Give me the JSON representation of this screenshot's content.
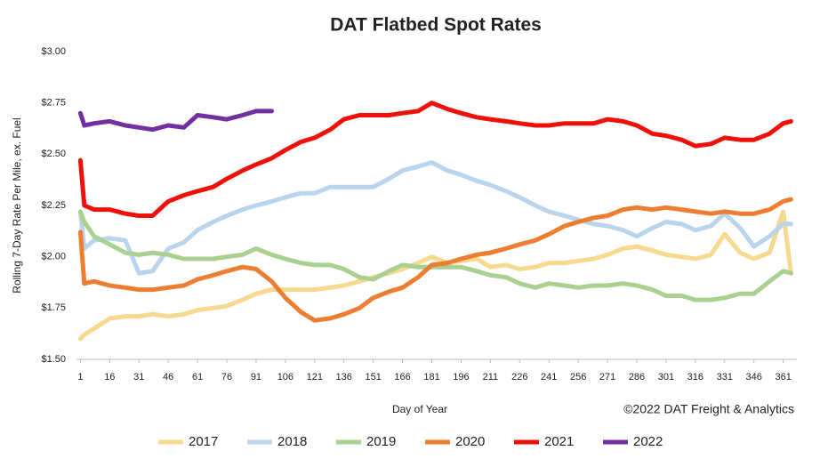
{
  "chart_data": {
    "type": "line",
    "title": "DAT Flatbed Spot Rates",
    "x_label": "Day of Year",
    "y_label": "Rolling 7-Day Rate Per Mile, ex. Fuel",
    "note": "©2022 DAT Freight & Analytics",
    "legend": "bottom",
    "xlim": [
      -1,
      368
    ],
    "ylim": [
      1.5,
      3.0
    ],
    "xticks": [
      1,
      16,
      31,
      46,
      61,
      76,
      91,
      106,
      121,
      136,
      151,
      166,
      181,
      196,
      211,
      226,
      241,
      256,
      271,
      286,
      301,
      316,
      331,
      346,
      361
    ],
    "yticks": [
      {
        "value": 1.5,
        "label": "$1.50"
      },
      {
        "value": 1.75,
        "label": "$1.75"
      },
      {
        "value": 2.0,
        "label": "$2.00"
      },
      {
        "value": 2.25,
        "label": "$2.25"
      },
      {
        "value": 2.5,
        "label": "$2.50"
      },
      {
        "value": 2.75,
        "label": "$2.75"
      },
      {
        "value": 3.0,
        "label": "$3.00"
      }
    ],
    "x": [
      1,
      3,
      8,
      16,
      24,
      31,
      38,
      46,
      54,
      61,
      69,
      76,
      84,
      91,
      99,
      106,
      114,
      121,
      129,
      136,
      144,
      151,
      159,
      166,
      174,
      181,
      189,
      196,
      204,
      211,
      219,
      226,
      234,
      241,
      249,
      256,
      264,
      271,
      279,
      286,
      294,
      301,
      309,
      316,
      324,
      331,
      339,
      346,
      354,
      361,
      365
    ],
    "series": [
      {
        "name": "2017",
        "color": "#f6d98e",
        "values": [
          1.6,
          1.62,
          1.65,
          1.7,
          1.71,
          1.71,
          1.72,
          1.71,
          1.72,
          1.74,
          1.75,
          1.76,
          1.79,
          1.82,
          1.84,
          1.84,
          1.84,
          1.84,
          1.85,
          1.86,
          1.88,
          1.9,
          1.92,
          1.94,
          1.97,
          2.0,
          1.97,
          1.98,
          1.99,
          1.95,
          1.96,
          1.94,
          1.95,
          1.97,
          1.97,
          1.98,
          1.99,
          2.01,
          2.04,
          2.05,
          2.03,
          2.01,
          2.0,
          1.99,
          2.01,
          2.11,
          2.02,
          1.99,
          2.02,
          2.22,
          1.92
        ]
      },
      {
        "name": "2018",
        "color": "#b9d4ec",
        "values": [
          2.22,
          2.04,
          2.08,
          2.09,
          2.08,
          1.92,
          1.93,
          2.04,
          2.07,
          2.13,
          2.17,
          2.2,
          2.23,
          2.25,
          2.27,
          2.29,
          2.31,
          2.31,
          2.34,
          2.34,
          2.34,
          2.34,
          2.38,
          2.42,
          2.44,
          2.46,
          2.42,
          2.4,
          2.37,
          2.35,
          2.32,
          2.29,
          2.25,
          2.22,
          2.2,
          2.18,
          2.16,
          2.15,
          2.13,
          2.1,
          2.14,
          2.17,
          2.16,
          2.13,
          2.15,
          2.21,
          2.14,
          2.05,
          2.1,
          2.16,
          2.16
        ]
      },
      {
        "name": "2019",
        "color": "#a9d08f",
        "values": [
          2.22,
          2.17,
          2.1,
          2.06,
          2.02,
          2.01,
          2.02,
          2.01,
          1.99,
          1.99,
          1.99,
          2.0,
          2.01,
          2.04,
          2.01,
          1.99,
          1.97,
          1.96,
          1.96,
          1.94,
          1.9,
          1.89,
          1.93,
          1.96,
          1.95,
          1.95,
          1.95,
          1.95,
          1.93,
          1.91,
          1.9,
          1.87,
          1.85,
          1.87,
          1.86,
          1.85,
          1.86,
          1.86,
          1.87,
          1.86,
          1.84,
          1.81,
          1.81,
          1.79,
          1.79,
          1.8,
          1.82,
          1.82,
          1.88,
          1.93,
          1.92
        ]
      },
      {
        "name": "2020",
        "color": "#ed7d31",
        "values": [
          2.12,
          1.87,
          1.88,
          1.86,
          1.85,
          1.84,
          1.84,
          1.85,
          1.86,
          1.89,
          1.91,
          1.93,
          1.95,
          1.94,
          1.88,
          1.8,
          1.73,
          1.69,
          1.7,
          1.72,
          1.75,
          1.8,
          1.83,
          1.85,
          1.9,
          1.96,
          1.97,
          1.99,
          2.01,
          2.02,
          2.04,
          2.06,
          2.08,
          2.11,
          2.15,
          2.17,
          2.19,
          2.2,
          2.23,
          2.24,
          2.23,
          2.24,
          2.23,
          2.22,
          2.21,
          2.22,
          2.21,
          2.21,
          2.23,
          2.27,
          2.28
        ]
      },
      {
        "name": "2021",
        "color": "#ee1109",
        "values": [
          2.47,
          2.25,
          2.23,
          2.23,
          2.21,
          2.2,
          2.2,
          2.27,
          2.3,
          2.32,
          2.34,
          2.38,
          2.42,
          2.45,
          2.48,
          2.52,
          2.56,
          2.58,
          2.62,
          2.67,
          2.69,
          2.69,
          2.69,
          2.7,
          2.71,
          2.75,
          2.72,
          2.7,
          2.68,
          2.67,
          2.66,
          2.65,
          2.64,
          2.64,
          2.65,
          2.65,
          2.65,
          2.67,
          2.66,
          2.64,
          2.6,
          2.59,
          2.57,
          2.54,
          2.55,
          2.58,
          2.57,
          2.57,
          2.6,
          2.65,
          2.66
        ]
      },
      {
        "name": "2022",
        "color": "#7030a0",
        "values": [
          2.7,
          2.64,
          2.65,
          2.66,
          2.64,
          2.63,
          2.62,
          2.64,
          2.63,
          2.69,
          2.68,
          2.67,
          2.69,
          2.71,
          2.71,
          null,
          null,
          null,
          null,
          null,
          null,
          null,
          null,
          null,
          null,
          null,
          null,
          null,
          null,
          null,
          null,
          null,
          null,
          null,
          null,
          null,
          null,
          null,
          null,
          null,
          null,
          null,
          null,
          null,
          null,
          null,
          null,
          null,
          null,
          null,
          null
        ]
      }
    ]
  }
}
